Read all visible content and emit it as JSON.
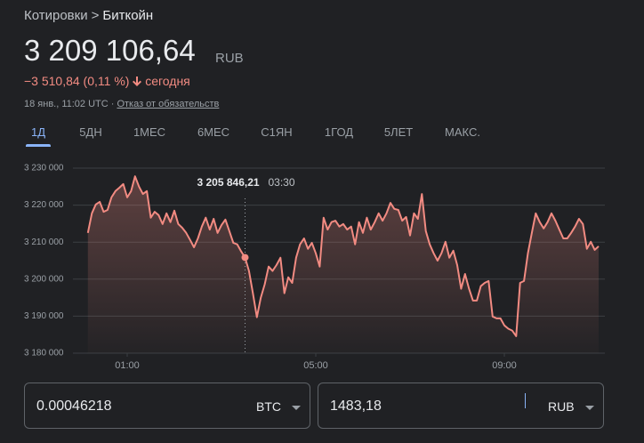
{
  "header": {
    "breadcrumb": [
      "Котировки",
      ">",
      "Биткойн"
    ],
    "price": "3 209 106,64",
    "currency": "RUB",
    "change": "−3 510,84 (0,11 %)",
    "period": "сегодня",
    "timestamp": "18 янв., 11:02 UTC ·",
    "disclaimer": "Отказ от обязательств"
  },
  "tabs": [
    "1Д",
    "5ДН",
    "1МЕС",
    "6МЕС",
    "С1ЯН",
    "1ГОД",
    "5ЛЕТ",
    "МАКС."
  ],
  "chart_data": {
    "type": "line",
    "color": "#f28b82",
    "x": [
      10,
      15,
      20,
      25,
      30,
      35,
      40,
      45,
      50,
      55,
      60,
      65,
      70,
      75,
      80,
      85,
      90,
      95,
      100,
      105,
      110,
      115,
      120,
      125,
      130,
      135,
      140,
      145,
      150,
      155,
      160,
      165,
      170,
      175,
      180,
      185,
      190,
      195,
      200,
      205,
      210,
      215,
      220,
      225,
      230,
      235,
      240,
      245,
      250,
      255,
      260,
      265,
      270,
      275,
      280,
      285,
      290,
      295,
      300,
      305,
      310,
      315,
      320,
      325,
      330,
      335,
      340,
      345,
      350,
      355,
      360,
      365,
      370,
      375,
      380,
      385,
      390,
      395,
      400,
      405,
      410,
      415,
      420,
      425,
      430,
      435,
      440,
      445,
      450,
      455,
      460,
      465,
      470,
      475,
      480,
      485,
      490,
      495,
      500,
      505,
      510,
      515,
      520,
      525,
      530,
      535,
      540,
      545,
      550,
      555,
      560,
      565,
      570,
      575,
      580,
      585,
      590,
      595,
      600,
      605,
      610,
      615,
      620,
      625,
      630,
      635,
      640,
      645,
      650,
      655,
      660
    ],
    "values": [
      3212500,
      3217800,
      3220200,
      3220900,
      3218200,
      3218700,
      3222100,
      3223800,
      3224700,
      3225700,
      3222100,
      3223800,
      3227800,
      3225000,
      3223000,
      3223800,
      3216600,
      3218200,
      3217300,
      3214900,
      3217800,
      3215400,
      3218500,
      3214900,
      3213900,
      3212500,
      3210600,
      3208600,
      3211000,
      3214200,
      3216600,
      3213400,
      3216300,
      3212500,
      3214600,
      3216100,
      3213000,
      3209800,
      3209400,
      3207500,
      3205846.21,
      3202200,
      3196200,
      3189700,
      3195000,
      3198600,
      3203400,
      3202200,
      3203800,
      3205800,
      3196200,
      3200500,
      3199000,
      3205800,
      3209400,
      3211000,
      3208200,
      3209800,
      3207000,
      3203400,
      3216600,
      3213400,
      3215400,
      3215800,
      3214200,
      3214900,
      3213400,
      3214200,
      3209400,
      3215400,
      3212500,
      3216600,
      3213400,
      3215400,
      3217800,
      3215800,
      3217800,
      3220600,
      3219000,
      3218700,
      3215800,
      3216800,
      3211800,
      3217800,
      3216300,
      3223000,
      3213000,
      3209400,
      3207000,
      3205000,
      3207000,
      3210100,
      3205800,
      3207700,
      3203800,
      3197400,
      3201400,
      3197400,
      3194200,
      3194200,
      3198100,
      3199000,
      3199500,
      3189900,
      3189400,
      3189400,
      3187500,
      3186600,
      3186100,
      3184600,
      3199000,
      3199500,
      3207000,
      3212500,
      3217800,
      3215400,
      3213700,
      3215400,
      3217800,
      3215800,
      3213400,
      3211000,
      3211000,
      3212500,
      3214200,
      3216300,
      3214900,
      3208200,
      3210100,
      3207900,
      3208900
    ],
    "xlim": [
      0,
      660
    ],
    "xticks": [
      {
        "value": 60,
        "label": "01:00"
      },
      {
        "value": 300,
        "label": "05:00"
      },
      {
        "value": 540,
        "label": "09:00"
      }
    ],
    "ylim": [
      3180000,
      3230000
    ],
    "yticks": [
      {
        "value": 3180000,
        "label": "3 180 000"
      },
      {
        "value": 3190000,
        "label": "3 190 000"
      },
      {
        "value": 3200000,
        "label": "3 200 000"
      },
      {
        "value": 3210000,
        "label": "3 210 000"
      },
      {
        "value": 3220000,
        "label": "3 220 000"
      },
      {
        "value": 3230000,
        "label": "3 230 000"
      }
    ],
    "grid": true,
    "tooltip": {
      "x": 210,
      "value": 3205846.21,
      "label": "3 205 846,21",
      "time": "03:30"
    }
  },
  "converter": {
    "amount": "0.00046218",
    "from": "BTC",
    "result": "1483,18",
    "to": "RUB"
  }
}
